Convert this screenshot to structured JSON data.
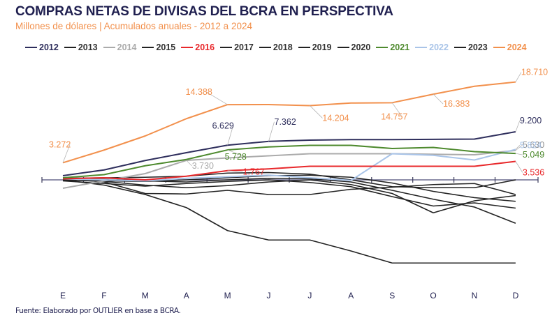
{
  "chart_data": {
    "type": "line",
    "title": "COMPRAS NETAS DE DIVISAS DEL BCRA EN PERSPECTIVA",
    "subtitle": "Millones de dólares | Acumulados anuales - 2012 a 2024",
    "xlabel": "",
    "ylabel": "",
    "x": [
      "E",
      "F",
      "M",
      "A",
      "M",
      "J",
      "J",
      "A",
      "S",
      "O",
      "N",
      "D"
    ],
    "ylim": [
      -18000,
      20000
    ],
    "grid": false,
    "legend_position": "top",
    "source": "Fuente: Elaborado por OUTLIER en base a BCRA.",
    "series": [
      {
        "name": "2013",
        "color": "#222222",
        "values": [
          300,
          -400,
          -2600,
          -2700,
          -2000,
          -2800,
          -2800,
          -1800,
          -1400,
          -900,
          -700,
          -2800
        ]
      },
      {
        "name": "2015",
        "color": "#222222",
        "values": [
          0,
          -1000,
          -2800,
          -5300,
          -9700,
          -11500,
          -11500,
          -13600,
          -15900,
          -15900,
          -15900,
          -15900
        ]
      },
      {
        "name": "2017",
        "color": "#222222",
        "values": [
          -200,
          -700,
          -1200,
          -700,
          -300,
          0,
          -500,
          -1300,
          -3200,
          -5000,
          -4400,
          -5400
        ]
      },
      {
        "name": "2018",
        "color": "#222222",
        "values": [
          100,
          -200,
          -300,
          0,
          400,
          800,
          900,
          500,
          -600,
          -2200,
          -3400,
          -4100
        ]
      },
      {
        "name": "2019",
        "color": "#222222",
        "values": [
          200,
          100,
          -200,
          -400,
          0,
          300,
          200,
          -400,
          -2000,
          -3700,
          -5200,
          -8300
        ]
      },
      {
        "name": "2020",
        "color": "#222222",
        "values": [
          0,
          -300,
          -1000,
          -1500,
          -1100,
          -400,
          0,
          -900,
          -2600,
          -6300,
          -4000,
          -3000
        ]
      },
      {
        "name": "2023",
        "color": "#222222",
        "values": [
          300,
          400,
          500,
          700,
          1300,
          1400,
          1100,
          0,
          -1300,
          -1500,
          -1500,
          0
        ]
      },
      {
        "name": "2014",
        "color": "#ababab",
        "values": [
          -1600,
          -200,
          1200,
          3730,
          4200,
          4600,
          5000,
          5000,
          5000,
          4900,
          4800,
          5630
        ]
      },
      {
        "name": "2022",
        "color": "#a9c4e8",
        "values": [
          200,
          0,
          -200,
          300,
          600,
          900,
          400,
          -100,
          5000,
          4700,
          3800,
          5824
        ]
      },
      {
        "name": "2016",
        "color": "#e8282b",
        "values": [
          200,
          400,
          0,
          700,
          1767,
          2100,
          2600,
          2600,
          2600,
          2600,
          2600,
          3536
        ]
      },
      {
        "name": "2021",
        "color": "#4e8a2e",
        "values": [
          400,
          1000,
          2700,
          3900,
          5728,
          6300,
          6600,
          6600,
          6000,
          6200,
          5400,
          5049
        ]
      },
      {
        "name": "2012",
        "color": "#2e2e5c",
        "values": [
          800,
          1900,
          3700,
          5200,
          6629,
          7362,
          7600,
          7700,
          7700,
          7750,
          7800,
          9200
        ]
      },
      {
        "name": "2024",
        "color": "#f2904c",
        "values": [
          3272,
          5700,
          8400,
          11700,
          14388,
          14400,
          14204,
          14700,
          14757,
          16383,
          17900,
          18710
        ]
      }
    ],
    "annotations": [
      {
        "series": "2024",
        "month_index": 0,
        "text": "3.272",
        "color": "#f2904c"
      },
      {
        "series": "2024",
        "month_index": 4,
        "text": "14.388",
        "color": "#f2904c"
      },
      {
        "series": "2024",
        "month_index": 6,
        "text": "14.204",
        "color": "#f2904c"
      },
      {
        "series": "2024",
        "month_index": 8,
        "text": "14.757",
        "color": "#f2904c"
      },
      {
        "series": "2024",
        "month_index": 9,
        "text": "16.383",
        "color": "#f2904c"
      },
      {
        "series": "2024",
        "month_index": 11,
        "text": "18.710",
        "color": "#f2904c"
      },
      {
        "series": "2012",
        "month_index": 4,
        "text": "6.629",
        "color": "#2e2e5c"
      },
      {
        "series": "2012",
        "month_index": 5,
        "text": "7.362",
        "color": "#2e2e5c"
      },
      {
        "series": "2012",
        "month_index": 11,
        "text": "9.200",
        "color": "#2e2e5c"
      },
      {
        "series": "2021",
        "month_index": 4,
        "text": "5.728",
        "color": "#4e8a2e"
      },
      {
        "series": "2021",
        "month_index": 11,
        "text": "5.049",
        "color": "#4e8a2e"
      },
      {
        "series": "2014",
        "month_index": 3,
        "text": "3.730",
        "color": "#ababab"
      },
      {
        "series": "2014",
        "month_index": 11,
        "text": "5.630",
        "color": "#8f8f8f"
      },
      {
        "series": "2016",
        "month_index": 4,
        "text": "1.767",
        "color": "#e8282b"
      },
      {
        "series": "2016",
        "month_index": 11,
        "text": "3.536",
        "color": "#e8282b"
      },
      {
        "series": "2022",
        "month_index": 11,
        "text": "5.824",
        "color": "#a9c4e8"
      }
    ]
  },
  "legend": [
    {
      "label": "2012",
      "color": "#2e2e5c"
    },
    {
      "label": "2013",
      "color": "#222222"
    },
    {
      "label": "2014",
      "color": "#ababab"
    },
    {
      "label": "2015",
      "color": "#222222"
    },
    {
      "label": "2016",
      "color": "#e8282b"
    },
    {
      "label": "2017",
      "color": "#222222"
    },
    {
      "label": "2018",
      "color": "#222222"
    },
    {
      "label": "2019",
      "color": "#222222"
    },
    {
      "label": "2020",
      "color": "#222222"
    },
    {
      "label": "2021",
      "color": "#4e8a2e"
    },
    {
      "label": "2022",
      "color": "#a9c4e8"
    },
    {
      "label": "2023",
      "color": "#222222"
    },
    {
      "label": "2024",
      "color": "#f2904c"
    }
  ]
}
